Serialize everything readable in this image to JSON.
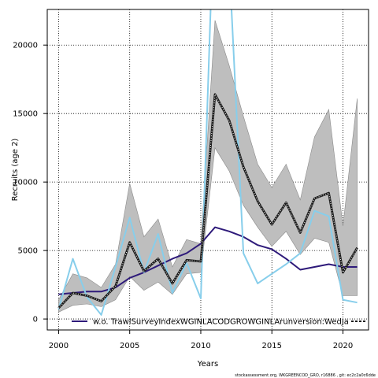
{
  "chart_data": {
    "type": "line",
    "xlabel": "Years",
    "ylabel": "Recruits (age 2)",
    "xlim": [
      1999.2,
      2021.8
    ],
    "ylim": [
      -800,
      22600
    ],
    "xticks": [
      2000,
      2005,
      2010,
      2015,
      2020
    ],
    "yticks": [
      0,
      5000,
      10000,
      15000,
      20000
    ],
    "grid": true,
    "legend_position": "bottom",
    "footer": "stockassessment.org, WKGREENCOD_GRO, r16886 , git: ec2c2a0c6dde",
    "colors": {
      "band": "#bebebe",
      "estimate": "#1a1a1a",
      "run1": "#2e1a7a",
      "run2": "#87ceeb"
    },
    "x": [
      2000,
      2001,
      2002,
      2003,
      2004,
      2005,
      2006,
      2007,
      2008,
      2009,
      2010,
      2011,
      2012,
      2013,
      2014,
      2015,
      2016,
      2017,
      2018,
      2019,
      2020,
      2021
    ],
    "band": {
      "lower": [
        500,
        1000,
        1100,
        900,
        1400,
        3100,
        2100,
        2700,
        1800,
        3300,
        3400,
        12500,
        10800,
        8300,
        6700,
        5300,
        6400,
        4700,
        5900,
        5600,
        1700,
        1700
      ],
      "upper": [
        1400,
        3300,
        3000,
        2300,
        4000,
        9900,
        6000,
        7300,
        3800,
        5800,
        5500,
        21800,
        18500,
        14800,
        11300,
        9600,
        11300,
        8700,
        13300,
        15300,
        6800,
        16100
      ]
    },
    "series": [
      {
        "key": "estimate",
        "values": [
          800,
          1900,
          1700,
          1300,
          2400,
          5600,
          3500,
          4400,
          2600,
          4300,
          4200,
          16400,
          14500,
          11100,
          8600,
          6900,
          8500,
          6300,
          8800,
          9200,
          3400,
          5200
        ]
      },
      {
        "key": "run1",
        "name": "w.o. TrawlSurveyIndexWGINLACODGROWGINLArunversion:WedJa",
        "values": [
          1800,
          1900,
          2000,
          2000,
          2300,
          3000,
          3400,
          3900,
          4400,
          4800,
          5500,
          6700,
          6400,
          6000,
          5400,
          5100,
          4400,
          3600,
          3800,
          4000,
          3800,
          3800
        ]
      },
      {
        "key": "run2",
        "values": [
          700,
          4400,
          1600,
          300,
          3800,
          7400,
          3400,
          6200,
          1900,
          4100,
          1500,
          32000,
          26000,
          4800,
          2600,
          3300,
          4000,
          4800,
          7900,
          7500,
          1400,
          1200
        ]
      }
    ]
  }
}
